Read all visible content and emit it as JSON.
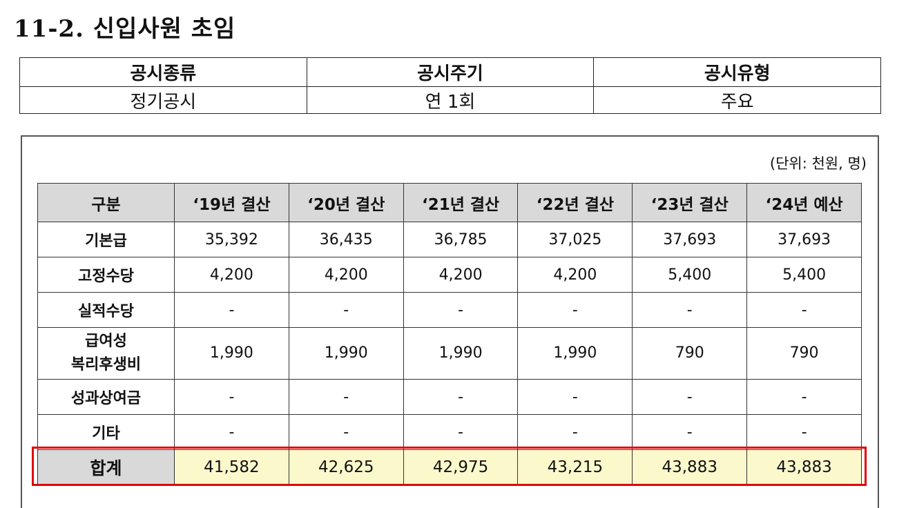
{
  "title": "11-2.  신입사원  초임",
  "disclosure": {
    "headers": [
      "공시종류",
      "공시주기",
      "공시유형"
    ],
    "values": [
      "정기공시",
      "연  1회",
      "주요"
    ]
  },
  "unit_note": "(단위: 천원, 명)",
  "salary_table": {
    "corner": "구분",
    "columns": [
      "‘19년  결산",
      "‘20년  결산",
      "‘21년  결산",
      "‘22년  결산",
      "‘23년  결산",
      "‘24년  예산"
    ],
    "rows": [
      {
        "label": "기본급",
        "values": [
          "35,392",
          "36,435",
          "36,785",
          "37,025",
          "37,693",
          "37,693"
        ]
      },
      {
        "label": "고정수당",
        "values": [
          "4,200",
          "4,200",
          "4,200",
          "4,200",
          "5,400",
          "5,400"
        ]
      },
      {
        "label": "실적수당",
        "values": [
          "-",
          "-",
          "-",
          "-",
          "-",
          "-"
        ]
      },
      {
        "label_line1": "급여성",
        "label_line2": "복리후생비",
        "values": [
          "1,990",
          "1,990",
          "1,990",
          "1,990",
          "790",
          "790"
        ]
      },
      {
        "label": "성과상여금",
        "values": [
          "-",
          "-",
          "-",
          "-",
          "-",
          "-"
        ]
      },
      {
        "label": "기타",
        "values": [
          "-",
          "-",
          "-",
          "-",
          "-",
          "-"
        ]
      }
    ],
    "total": {
      "label": "합계",
      "values": [
        "41,582",
        "42,625",
        "42,975",
        "43,215",
        "43,883",
        "43,883"
      ]
    }
  },
  "colors": {
    "header_bg": "#d9d9d9",
    "total_bg": "#fbf8cc",
    "highlight": "#e00000"
  }
}
